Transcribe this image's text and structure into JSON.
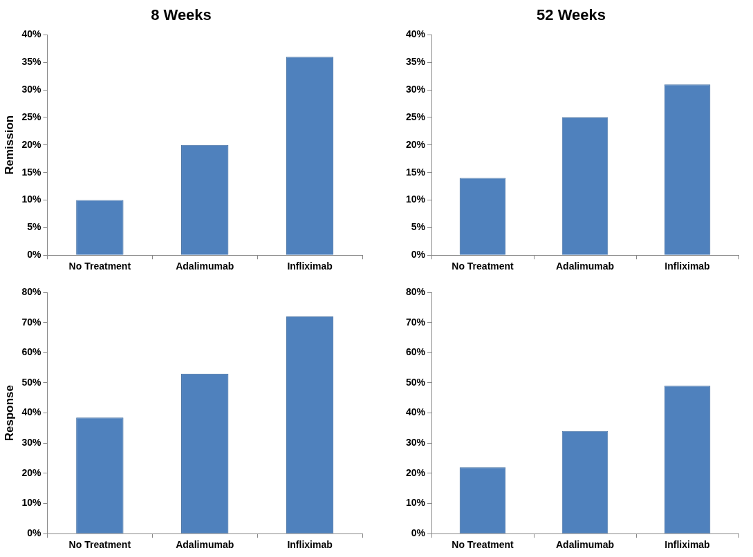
{
  "chart_data": [
    {
      "type": "bar",
      "title": "8 Weeks",
      "ylabel": "Remission",
      "categories": [
        "No Treatment",
        "Adalimumab",
        "Infliximab"
      ],
      "values": [
        10,
        20,
        36
      ],
      "color": "#4f81bd",
      "ylim": [
        0,
        40
      ],
      "yticks": [
        {
          "value": 0,
          "label": "0%"
        },
        {
          "value": 5,
          "label": "5%"
        },
        {
          "value": 10,
          "label": "10%"
        },
        {
          "value": 15,
          "label": "15%"
        },
        {
          "value": 20,
          "label": "20%"
        },
        {
          "value": 25,
          "label": "25%"
        },
        {
          "value": 30,
          "label": "30%"
        },
        {
          "value": 35,
          "label": "35%"
        },
        {
          "value": 40,
          "label": "40%"
        }
      ],
      "grid": false
    },
    {
      "type": "bar",
      "title": "52 Weeks",
      "categories": [
        "No Treatment",
        "Adalimumab",
        "Infliximab"
      ],
      "values": [
        14,
        25,
        31
      ],
      "color": "#4f81bd",
      "ylim": [
        0,
        40
      ],
      "yticks": [
        {
          "value": 0,
          "label": "0%"
        },
        {
          "value": 5,
          "label": "5%"
        },
        {
          "value": 10,
          "label": "10%"
        },
        {
          "value": 15,
          "label": "15%"
        },
        {
          "value": 20,
          "label": "20%"
        },
        {
          "value": 25,
          "label": "25%"
        },
        {
          "value": 30,
          "label": "30%"
        },
        {
          "value": 35,
          "label": "35%"
        },
        {
          "value": 40,
          "label": "40%"
        }
      ],
      "grid": false
    },
    {
      "type": "bar",
      "ylabel": "Response",
      "categories": [
        "No Treatment",
        "Adalimumab",
        "Infliximab"
      ],
      "values": [
        38.5,
        53,
        72
      ],
      "color": "#4f81bd",
      "ylim": [
        0,
        80
      ],
      "yticks": [
        {
          "value": 0,
          "label": "0%"
        },
        {
          "value": 10,
          "label": "10%"
        },
        {
          "value": 20,
          "label": "20%"
        },
        {
          "value": 30,
          "label": "30%"
        },
        {
          "value": 40,
          "label": "40%"
        },
        {
          "value": 50,
          "label": "50%"
        },
        {
          "value": 60,
          "label": "60%"
        },
        {
          "value": 70,
          "label": "70%"
        },
        {
          "value": 80,
          "label": "80%"
        }
      ],
      "grid": false
    },
    {
      "type": "bar",
      "categories": [
        "No Treatment",
        "Adalimumab",
        "Infliximab"
      ],
      "values": [
        22,
        34,
        49
      ],
      "color": "#4f81bd",
      "ylim": [
        0,
        80
      ],
      "yticks": [
        {
          "value": 0,
          "label": "0%"
        },
        {
          "value": 10,
          "label": "10%"
        },
        {
          "value": 20,
          "label": "20%"
        },
        {
          "value": 30,
          "label": "30%"
        },
        {
          "value": 40,
          "label": "40%"
        },
        {
          "value": 50,
          "label": "50%"
        },
        {
          "value": 60,
          "label": "60%"
        },
        {
          "value": 70,
          "label": "70%"
        },
        {
          "value": 80,
          "label": "80%"
        }
      ],
      "grid": false
    }
  ]
}
